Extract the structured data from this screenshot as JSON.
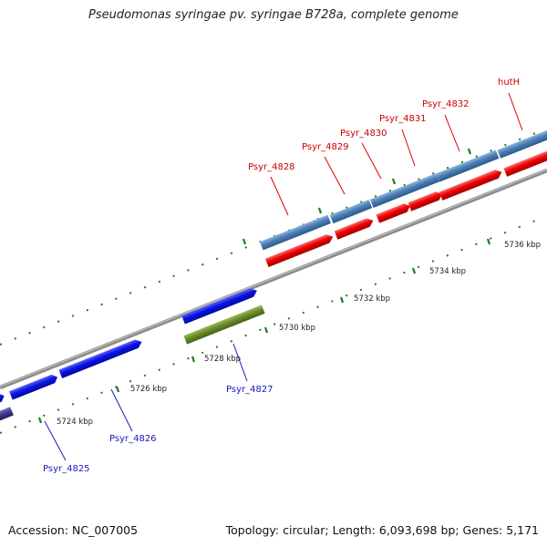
{
  "title": "Pseudomonas syringae pv. syringae B728a, complete genome",
  "footer": {
    "accession": "Accession: NC_007005",
    "summary": "Topology: circular; Length: 6,093,698 bp; Genes: 5,171"
  },
  "scale": {
    "unit": "kbp",
    "labels": [
      "5724 kbp",
      "5726 kbp",
      "5728 kbp",
      "5730 kbp",
      "5732 kbp",
      "5734 kbp",
      "5736 kbp"
    ]
  },
  "gene_labels": {
    "forward": [
      "Psyr_4828",
      "Psyr_4829",
      "Psyr_4830",
      "Psyr_4831",
      "Psyr_4832",
      "hutH"
    ],
    "reverse": [
      "Psyr_4825",
      "Psyr_4826",
      "Psyr_4827"
    ]
  },
  "colors": {
    "forward_label": "#cc0000",
    "reverse_label": "#1a1ab8",
    "cds_red": "#ee0000",
    "cds_blue": "#0a12e6",
    "gene_steelblue": "#4a7fb6",
    "gene_green": "#6a8c2a",
    "gene_purple": "#3d3a8c",
    "backbone": "#8c8c8c",
    "tick": "#1e7a1e"
  }
}
